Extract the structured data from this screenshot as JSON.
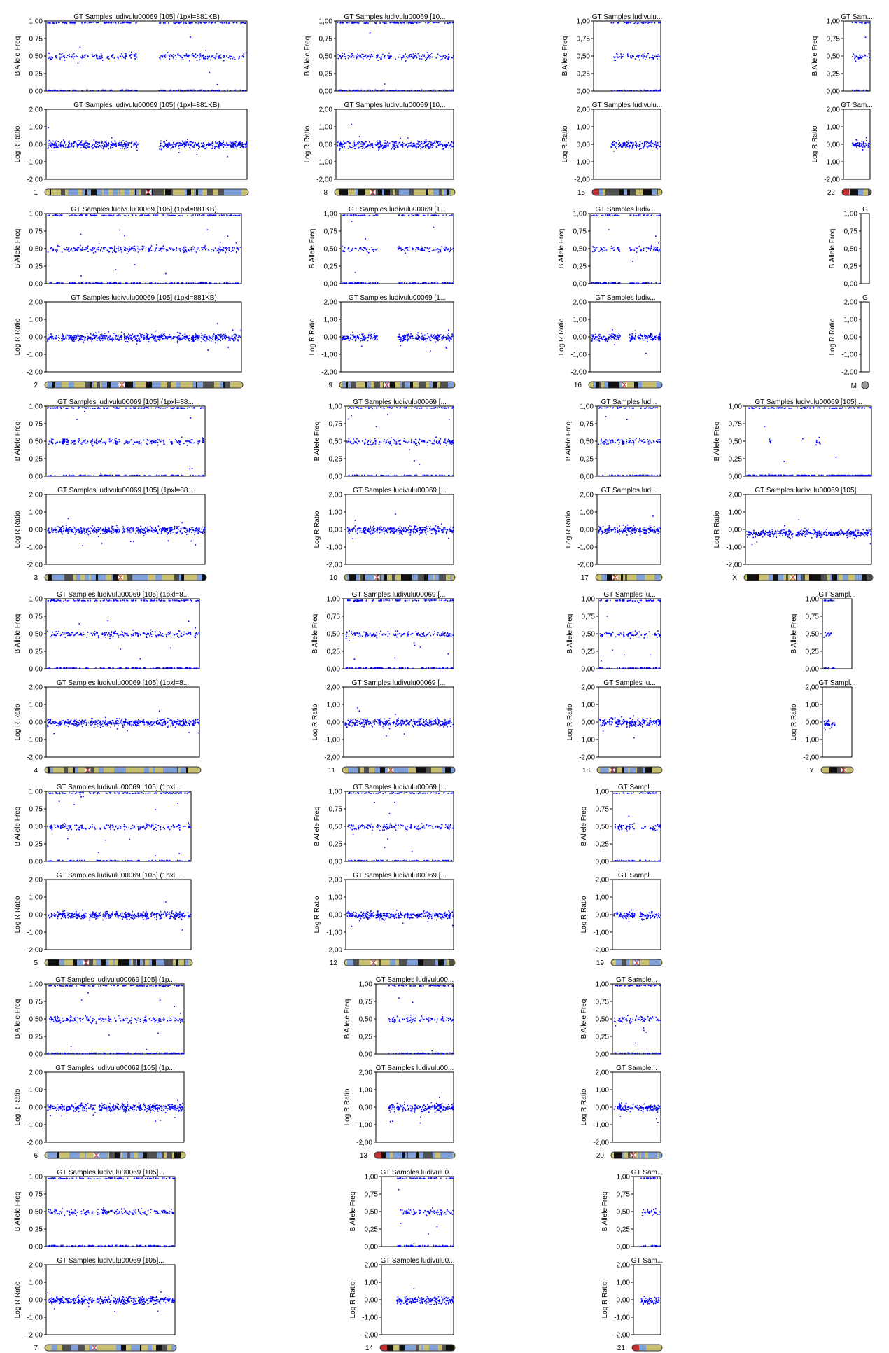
{
  "page": {
    "sample_label": "GT Samples ludivulu00069 [105]",
    "scale_note": "(1pxl=881KB)"
  },
  "colors": {
    "points": "#0000ff",
    "axes": "#000000",
    "band_light": "#c8c070",
    "band_blue": "#7f9fd8",
    "band_dark": "#101010",
    "centromere": "#d24040",
    "acrocentric_tip": "#c03030"
  },
  "chart_data": {
    "type": "scatter",
    "panel_layout": "column-major grid, 4 columns",
    "baf_panel": {
      "ylabel": "B Allele Freq",
      "ylim": [
        0,
        1
      ],
      "yticks": [
        "0,00",
        "0,25",
        "0,50",
        "0,75",
        "1,00"
      ]
    },
    "lrr_panel": {
      "ylabel": "Log R Ratio",
      "ylim": [
        -2,
        2
      ],
      "yticks": [
        "-2,00",
        "-1,00",
        "0,00",
        "1,00",
        "2,00"
      ]
    },
    "chromosomes": [
      {
        "chr": "1",
        "title": "GT Samples ludivulu00069 [105]  (1pxl=881KB)",
        "gaps": [
          [
            0.455,
            0.56
          ]
        ],
        "baf_het": 0.5,
        "lrr_mean": 0.0
      },
      {
        "chr": "2",
        "title": "GT Samples ludivulu00069 [105]  (1pxl=881KB)",
        "gaps": [
          [
            0.385,
            0.395
          ]
        ],
        "baf_het": 0.5,
        "lrr_mean": 0.0
      },
      {
        "chr": "3",
        "title": "GT Samples ludivulu00069 [105]  (1pxl=88...",
        "gaps": [
          [
            0.46,
            0.475
          ]
        ],
        "baf_het": 0.5,
        "lrr_mean": 0.0
      },
      {
        "chr": "4",
        "title": "GT Samples ludivulu00069 [105]  (1pxl=8...",
        "gaps": [
          [
            0.27,
            0.28
          ]
        ],
        "baf_het": 0.5,
        "lrr_mean": 0.0
      },
      {
        "chr": "5",
        "title": "GT Samples ludivulu00069 [105]  (1pxl...",
        "gaps": [
          [
            0.27,
            0.29
          ],
          [
            0.37,
            0.385
          ]
        ],
        "baf_het": 0.5,
        "lrr_mean": 0.0
      },
      {
        "chr": "6",
        "title": "GT Samples ludivulu00069 [105]  (1p...",
        "gaps": [
          [
            0.36,
            0.375
          ]
        ],
        "baf_het": 0.5,
        "lrr_mean": 0.0
      },
      {
        "chr": "7",
        "title": "GT Samples ludivulu00069 [105]...",
        "gaps": [
          [
            0.37,
            0.385
          ]
        ],
        "baf_het": 0.5,
        "lrr_mean": 0.0
      },
      {
        "chr": "8",
        "title": "GT Samples ludivulu00069 [10...",
        "gaps": [
          [
            0.31,
            0.325
          ]
        ],
        "baf_het": 0.5,
        "lrr_mean": 0.0
      },
      {
        "chr": "9",
        "title": "GT Samples ludivulu00069 [1...",
        "gaps": [
          [
            0.32,
            0.5
          ]
        ],
        "baf_het": 0.5,
        "lrr_mean": 0.0
      },
      {
        "chr": "10",
        "title": "GT Samples ludivulu00069 [...",
        "gaps": [
          [
            0.29,
            0.3
          ]
        ],
        "baf_het": 0.5,
        "lrr_mean": 0.0
      },
      {
        "chr": "11",
        "title": "GT Samples ludivulu00069 [...",
        "gaps": [
          [
            0.42,
            0.44
          ]
        ],
        "baf_het": 0.5,
        "lrr_mean": 0.0
      },
      {
        "chr": "12",
        "title": "GT Samples ludivulu00069 [...",
        "gaps": [
          [
            0.26,
            0.27
          ]
        ],
        "baf_het": 0.5,
        "lrr_mean": 0.0
      },
      {
        "chr": "13",
        "title": "GT Samples ludivulu00...",
        "gaps": [
          [
            0.0,
            0.15
          ]
        ],
        "baf_het": 0.5,
        "lrr_mean": 0.0
      },
      {
        "chr": "14",
        "title": "GT Samples ludivulu0...",
        "gaps": [
          [
            0.0,
            0.2
          ]
        ],
        "baf_het": 0.5,
        "lrr_mean": 0.0
      },
      {
        "chr": "15",
        "title": "GT Samples ludivulu...",
        "gaps": [
          [
            0.0,
            0.25
          ]
        ],
        "baf_het": 0.5,
        "lrr_mean": 0.0
      },
      {
        "chr": "16",
        "title": "GT Samples ludiv...",
        "gaps": [
          [
            0.42,
            0.55
          ]
        ],
        "baf_het": 0.5,
        "lrr_mean": 0.0
      },
      {
        "chr": "17",
        "title": "GT Samples lud...",
        "gaps": [
          [
            0.28,
            0.3
          ]
        ],
        "baf_het": 0.5,
        "lrr_mean": 0.0
      },
      {
        "chr": "18",
        "title": "GT Samples lu...",
        "gaps": [
          [
            0.22,
            0.25
          ]
        ],
        "baf_het": 0.5,
        "lrr_mean": 0.0
      },
      {
        "chr": "19",
        "title": "GT Sampl...",
        "gaps": [
          [
            0.45,
            0.55
          ]
        ],
        "baf_het": 0.5,
        "lrr_mean": 0.0
      },
      {
        "chr": "20",
        "title": "GT Sample...",
        "gaps": [
          [
            0.42,
            0.45
          ]
        ],
        "baf_het": 0.5,
        "lrr_mean": 0.0
      },
      {
        "chr": "21",
        "title": "GT Sam...",
        "gaps": [
          [
            0.0,
            0.25
          ]
        ],
        "baf_het": 0.5,
        "lrr_mean": 0.0
      },
      {
        "chr": "22",
        "title": "GT Sam...",
        "gaps": [
          [
            0.0,
            0.3
          ]
        ],
        "baf_het": 0.5,
        "lrr_mean": 0.0
      },
      {
        "chr": "X",
        "title": "GT Samples ludivulu00069 [105]...",
        "gaps": [
          [
            0.37,
            0.39
          ]
        ],
        "baf_het": null,
        "baf_het_regions": [
          [
            0.18,
            0.2
          ],
          [
            0.54,
            0.59
          ]
        ],
        "lrr_mean": -0.2
      },
      {
        "chr": "Y",
        "title": "GT Sampl...",
        "gaps": [
          [
            0.4,
            1.0
          ]
        ],
        "baf_het": null,
        "baf_het_regions": [
          [
            0.0,
            0.3
          ]
        ],
        "lrr_mean": -0.1
      },
      {
        "chr": "M",
        "title": "G",
        "gaps": [
          [
            0.0,
            1.0
          ]
        ],
        "baf_het": null,
        "lrr_mean": null
      }
    ]
  }
}
